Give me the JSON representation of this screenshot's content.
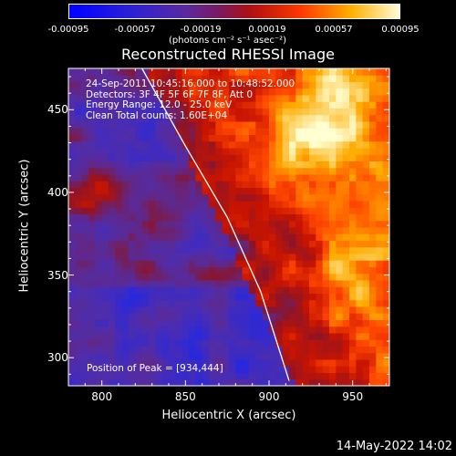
{
  "colorbar": {
    "ticks": [
      "-0.00095",
      "-0.00057",
      "-0.00019",
      "0.00019",
      "0.00057",
      "0.00095"
    ],
    "unit_label": "(photons cm⁻² s⁻¹ asec⁻²)"
  },
  "info": {
    "line1": "24-Sep-2011 10:45:16.000 to 10:48:52.000",
    "line2": "Detectors: 3F 4F 5F 6F 7F 8F, Att 0",
    "line3": "Energy Range: 12.0 - 25.0 keV",
    "line4": "Clean     Total counts: 1.60E+04"
  },
  "peak_label": "Position of Peak = [934,444]",
  "footer_date": "14-May-2022 14:02",
  "chart_data": {
    "type": "heatmap",
    "title": "Reconstructed RHESSI Image",
    "xlabel": "Heliocentric X (arcsec)",
    "ylabel": "Heliocentric Y (arcsec)",
    "xlim": [
      780,
      972
    ],
    "ylim": [
      283,
      475
    ],
    "xticks": [
      800,
      850,
      900,
      950
    ],
    "yticks": [
      300,
      350,
      400,
      450
    ],
    "colorscale_range": [
      -0.00095,
      0.00095
    ],
    "colormap": "blue-purple-red-yellow-white",
    "peak": [
      934,
      444
    ],
    "limb_curve": [
      [
        824,
        475
      ],
      [
        850,
        428
      ],
      [
        875,
        385
      ],
      [
        895,
        340
      ],
      [
        912,
        286
      ]
    ]
  }
}
